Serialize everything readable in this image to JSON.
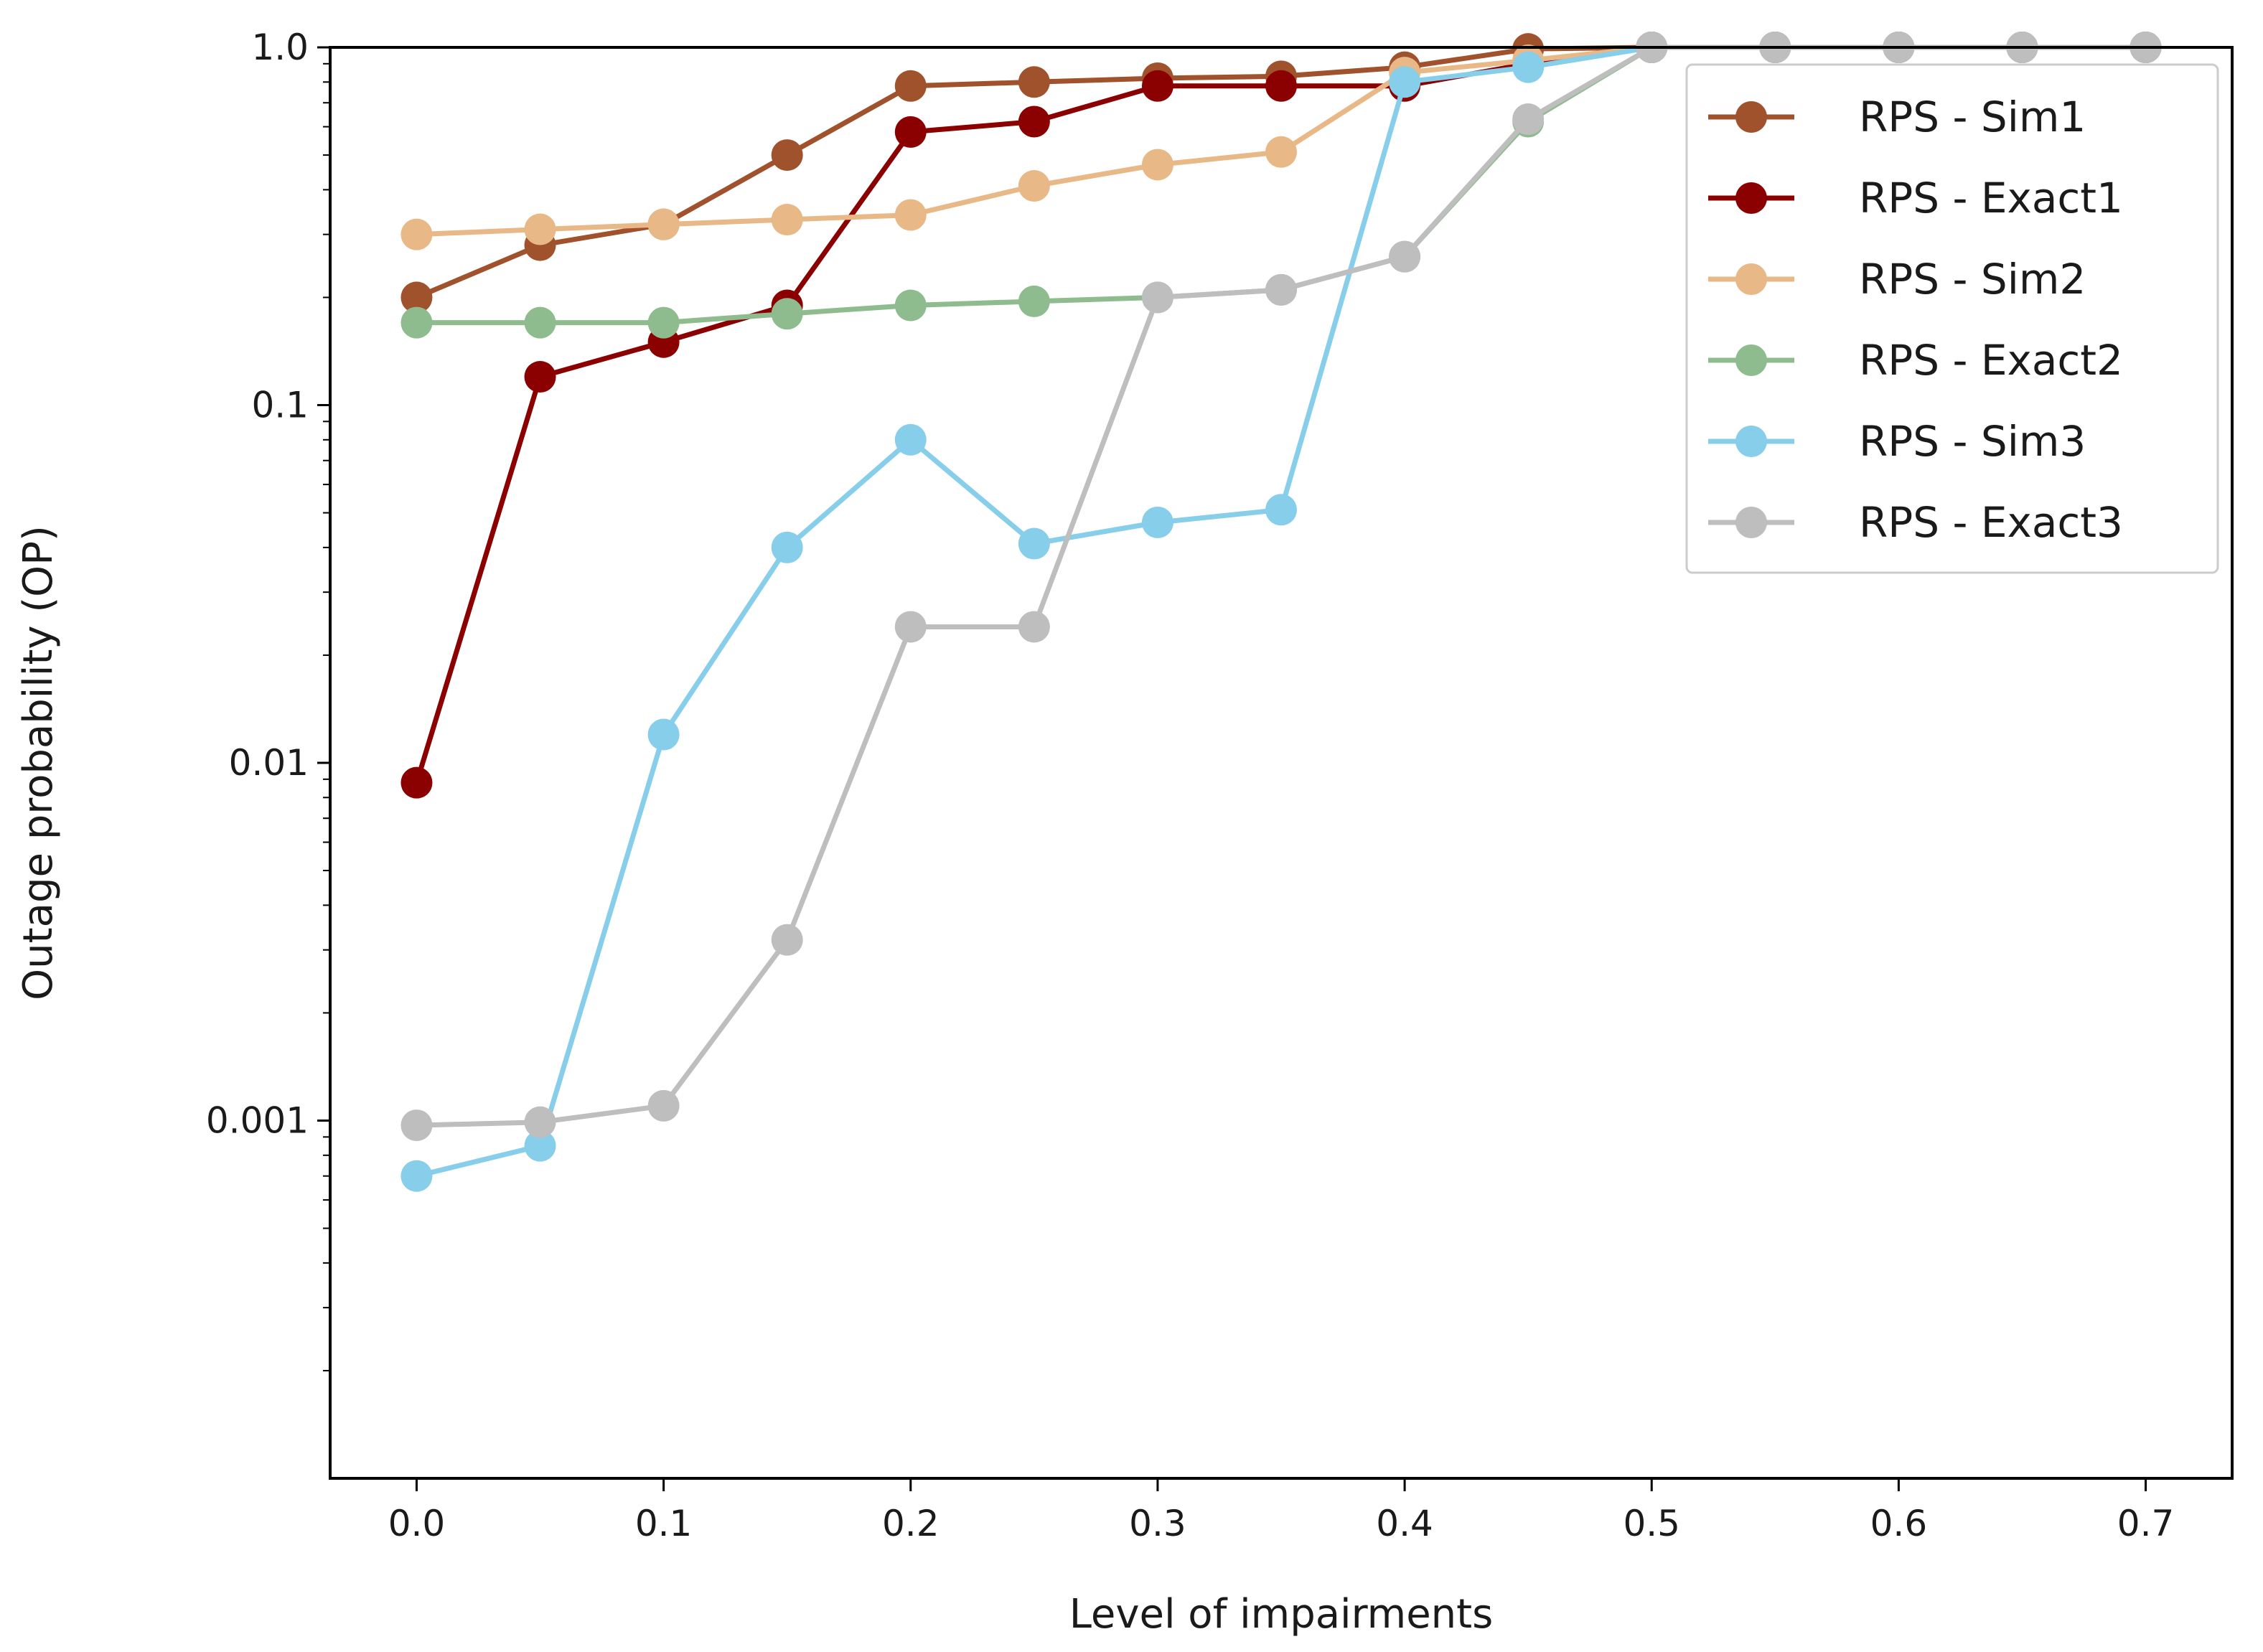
{
  "chart_data": {
    "type": "line",
    "title": "",
    "xlabel": "Level of impairments",
    "ylabel": "Outage probability (OP)",
    "yscale": "log",
    "xlim": [
      -0.035,
      0.735
    ],
    "ylim": [
      0.0001,
      1.0
    ],
    "x": [
      0.0,
      0.05,
      0.1,
      0.15,
      0.2,
      0.25,
      0.3,
      0.35,
      0.4,
      0.45,
      0.5,
      0.55,
      0.6,
      0.65,
      0.7
    ],
    "xticks": [
      0.0,
      0.1,
      0.2,
      0.3,
      0.4,
      0.5,
      0.6,
      0.7
    ],
    "xtick_labels": [
      "0.0",
      "0.1",
      "0.2",
      "0.3",
      "0.4",
      "0.5",
      "0.6",
      "0.7"
    ],
    "yticks": [
      0.001,
      0.01,
      0.1,
      1.0
    ],
    "ytick_labels": [
      "0.001",
      "0.01",
      "0.1",
      "1.0"
    ],
    "legend_position": "top-right",
    "series": [
      {
        "name": "RPS - Sim1",
        "color": "#A0522D",
        "values": [
          0.2,
          0.28,
          0.32,
          0.5,
          0.78,
          0.8,
          0.82,
          0.83,
          0.88,
          0.99,
          1.0,
          1.0,
          1.0,
          1.0,
          1.0
        ]
      },
      {
        "name": "RPS - Exact1",
        "color": "#8B0000",
        "values": [
          0.0088,
          0.12,
          0.15,
          0.19,
          0.58,
          0.62,
          0.78,
          0.78,
          0.78,
          0.9,
          1.0,
          1.0,
          1.0,
          1.0,
          1.0
        ]
      },
      {
        "name": "RPS - Sim2",
        "color": "#E8B887",
        "values": [
          0.3,
          0.31,
          0.32,
          0.33,
          0.34,
          0.41,
          0.47,
          0.51,
          0.85,
          0.92,
          1.0,
          1.0,
          1.0,
          1.0,
          1.0
        ]
      },
      {
        "name": "RPS - Exact2",
        "color": "#8FBC8F",
        "values": [
          0.17,
          0.17,
          0.17,
          0.18,
          0.19,
          0.195,
          0.2,
          0.21,
          0.26,
          0.62,
          1.0,
          1.0,
          1.0,
          1.0,
          1.0
        ]
      },
      {
        "name": "RPS - Sim3",
        "color": "#87CEEB",
        "values": [
          0.0007,
          0.00085,
          0.012,
          0.04,
          0.08,
          0.041,
          0.047,
          0.051,
          0.8,
          0.88,
          1.0,
          1.0,
          1.0,
          1.0,
          1.0
        ]
      },
      {
        "name": "RPS - Exact3",
        "color": "#BEBEBE",
        "values": [
          0.00097,
          0.00099,
          0.0011,
          0.0032,
          0.024,
          0.024,
          0.2,
          0.21,
          0.26,
          0.63,
          1.0,
          1.0,
          1.0,
          1.0,
          1.0
        ]
      }
    ]
  }
}
